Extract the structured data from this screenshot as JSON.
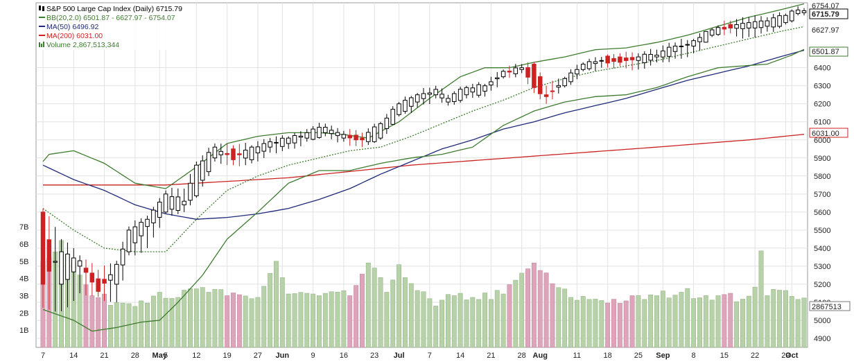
{
  "legend": {
    "title": "S&P 500 Large Cap Index (Daily) 6715.79",
    "bb": "BB(20,2.0) 6501.87 - 6627.97 - 6754.07",
    "ma50": "MA(50) 6496.92",
    "ma200": "MA(200) 6031.00",
    "volume": "Volume 2,867,513,344"
  },
  "tags": {
    "price_label": "6715.79",
    "bb_upper_label": "6754.07",
    "bb_mid_label": "6627.97",
    "bb_lower_label": "6501.87",
    "ma200_label": "6031.00",
    "volume_label": "2867513"
  },
  "chart_data": {
    "type": "candlestick",
    "title": "S&P 500 Large Cap Index (Daily) 6715.79",
    "price_axis": {
      "min": 4850,
      "max": 6760,
      "ticks": [
        4900,
        5000,
        5100,
        5200,
        5300,
        5400,
        5500,
        5600,
        5700,
        5800,
        5900,
        6000,
        6100,
        6200,
        6300,
        6400
      ]
    },
    "volume_axis": {
      "max_billions": 8,
      "ticks": [
        "1B",
        "2B",
        "3B",
        "4B",
        "5B",
        "6B",
        "7B"
      ]
    },
    "x_labels": [
      {
        "i": 0,
        "label": "7"
      },
      {
        "i": 5,
        "label": "14"
      },
      {
        "i": 10,
        "label": "21"
      },
      {
        "i": 15,
        "label": "28"
      },
      {
        "i": 19,
        "label": "May"
      },
      {
        "i": 20,
        "label": "5"
      },
      {
        "i": 25,
        "label": "12"
      },
      {
        "i": 30,
        "label": "19"
      },
      {
        "i": 35,
        "label": "27"
      },
      {
        "i": 39,
        "label": "Jun"
      },
      {
        "i": 44,
        "label": "9"
      },
      {
        "i": 49,
        "label": "16"
      },
      {
        "i": 54,
        "label": "23"
      },
      {
        "i": 58,
        "label": "Jul"
      },
      {
        "i": 63,
        "label": "7"
      },
      {
        "i": 68,
        "label": "14"
      },
      {
        "i": 73,
        "label": "21"
      },
      {
        "i": 78,
        "label": "28"
      },
      {
        "i": 81,
        "label": "Aug"
      },
      {
        "i": 87,
        "label": "11"
      },
      {
        "i": 92,
        "label": "18"
      },
      {
        "i": 97,
        "label": "25"
      },
      {
        "i": 101,
        "label": "Sep"
      },
      {
        "i": 106,
        "label": "8"
      },
      {
        "i": 111,
        "label": "15"
      },
      {
        "i": 116,
        "label": "22"
      },
      {
        "i": 121,
        "label": "29"
      },
      {
        "i": 122,
        "label": "Oct"
      }
    ],
    "ohlc_anchors": [
      [
        0,
        5600,
        5620,
        5070,
        5200
      ],
      [
        3,
        5200,
        5450,
        5050,
        5380
      ],
      [
        6,
        5300,
        5360,
        5150,
        5330
      ],
      [
        9,
        5230,
        5280,
        5130,
        5160
      ],
      [
        12,
        5200,
        5330,
        5100,
        5310
      ],
      [
        14,
        5380,
        5520,
        5360,
        5500
      ],
      [
        17,
        5520,
        5580,
        5400,
        5560
      ],
      [
        20,
        5600,
        5720,
        5590,
        5700
      ],
      [
        23,
        5640,
        5730,
        5600,
        5660
      ],
      [
        25,
        5690,
        5880,
        5680,
        5860
      ],
      [
        28,
        5900,
        5980,
        5880,
        5960
      ],
      [
        31,
        5950,
        5970,
        5860,
        5890
      ],
      [
        34,
        5890,
        5970,
        5870,
        5960
      ],
      [
        37,
        5960,
        6010,
        5930,
        5990
      ],
      [
        40,
        5980,
        6020,
        5950,
        6010
      ],
      [
        43,
        6010,
        6060,
        5990,
        6040
      ],
      [
        46,
        6040,
        6090,
        6020,
        6070
      ],
      [
        49,
        6010,
        6050,
        5990,
        6030
      ],
      [
        52,
        6010,
        6040,
        5960,
        6000
      ],
      [
        55,
        6010,
        6100,
        6000,
        6090
      ],
      [
        58,
        6140,
        6210,
        6130,
        6200
      ],
      [
        61,
        6210,
        6260,
        6180,
        6250
      ],
      [
        64,
        6250,
        6300,
        6230,
        6280
      ],
      [
        66,
        6210,
        6250,
        6190,
        6230
      ],
      [
        69,
        6250,
        6300,
        6230,
        6290
      ],
      [
        72,
        6270,
        6310,
        6240,
        6300
      ],
      [
        75,
        6350,
        6390,
        6340,
        6380
      ],
      [
        78,
        6390,
        6420,
        6370,
        6400
      ],
      [
        80,
        6420,
        6430,
        6260,
        6290
      ],
      [
        82,
        6250,
        6300,
        6200,
        6240
      ],
      [
        85,
        6300,
        6350,
        6290,
        6340
      ],
      [
        88,
        6390,
        6430,
        6380,
        6420
      ],
      [
        91,
        6440,
        6460,
        6400,
        6440
      ],
      [
        94,
        6460,
        6480,
        6410,
        6430
      ],
      [
        97,
        6440,
        6480,
        6390,
        6460
      ],
      [
        100,
        6460,
        6500,
        6430,
        6470
      ],
      [
        103,
        6490,
        6540,
        6450,
        6520
      ],
      [
        106,
        6520,
        6560,
        6480,
        6550
      ],
      [
        109,
        6580,
        6620,
        6570,
        6610
      ],
      [
        112,
        6640,
        6660,
        6590,
        6620
      ],
      [
        115,
        6620,
        6680,
        6570,
        6650
      ],
      [
        118,
        6630,
        6680,
        6600,
        6660
      ],
      [
        121,
        6650,
        6700,
        6640,
        6690
      ],
      [
        123,
        6700,
        6740,
        6690,
        6720
      ],
      [
        124,
        6705,
        6730,
        6690,
        6715.79
      ]
    ],
    "bb_upper_anchors": [
      [
        0,
        5880
      ],
      [
        1,
        5920
      ],
      [
        5,
        5940
      ],
      [
        10,
        5870
      ],
      [
        15,
        5760
      ],
      [
        20,
        5730
      ],
      [
        25,
        5850
      ],
      [
        30,
        5980
      ],
      [
        35,
        6020
      ],
      [
        40,
        6040
      ],
      [
        45,
        6040
      ],
      [
        49,
        6030
      ],
      [
        53,
        6010
      ],
      [
        58,
        6100
      ],
      [
        63,
        6230
      ],
      [
        68,
        6350
      ],
      [
        72,
        6400
      ],
      [
        76,
        6400
      ],
      [
        80,
        6430
      ],
      [
        85,
        6460
      ],
      [
        90,
        6500
      ],
      [
        95,
        6510
      ],
      [
        100,
        6540
      ],
      [
        105,
        6580
      ],
      [
        110,
        6630
      ],
      [
        115,
        6680
      ],
      [
        120,
        6720
      ],
      [
        124,
        6754.07
      ]
    ],
    "bb_mid_anchors": [
      [
        0,
        5620
      ],
      [
        5,
        5500
      ],
      [
        10,
        5400
      ],
      [
        15,
        5380
      ],
      [
        20,
        5380
      ],
      [
        25,
        5560
      ],
      [
        30,
        5720
      ],
      [
        35,
        5800
      ],
      [
        40,
        5860
      ],
      [
        45,
        5900
      ],
      [
        50,
        5940
      ],
      [
        55,
        5960
      ],
      [
        60,
        6020
      ],
      [
        65,
        6090
      ],
      [
        70,
        6160
      ],
      [
        75,
        6220
      ],
      [
        80,
        6290
      ],
      [
        85,
        6340
      ],
      [
        90,
        6380
      ],
      [
        95,
        6410
      ],
      [
        100,
        6440
      ],
      [
        105,
        6480
      ],
      [
        110,
        6520
      ],
      [
        115,
        6560
      ],
      [
        120,
        6600
      ],
      [
        124,
        6627.97
      ]
    ],
    "bb_lower_anchors": [
      [
        0,
        5060
      ],
      [
        5,
        5000
      ],
      [
        8,
        4940
      ],
      [
        12,
        4960
      ],
      [
        16,
        4990
      ],
      [
        19,
        5000
      ],
      [
        22,
        5100
      ],
      [
        26,
        5250
      ],
      [
        30,
        5450
      ],
      [
        35,
        5600
      ],
      [
        40,
        5760
      ],
      [
        45,
        5830
      ],
      [
        50,
        5830
      ],
      [
        55,
        5870
      ],
      [
        60,
        5900
      ],
      [
        65,
        5920
      ],
      [
        70,
        5960
      ],
      [
        75,
        6080
      ],
      [
        80,
        6160
      ],
      [
        85,
        6210
      ],
      [
        90,
        6240
      ],
      [
        95,
        6250
      ],
      [
        100,
        6290
      ],
      [
        105,
        6350
      ],
      [
        110,
        6400
      ],
      [
        114,
        6410
      ],
      [
        118,
        6420
      ],
      [
        122,
        6470
      ],
      [
        124,
        6501.87
      ]
    ],
    "ma50_anchors": [
      [
        0,
        5860
      ],
      [
        5,
        5780
      ],
      [
        10,
        5720
      ],
      [
        15,
        5640
      ],
      [
        20,
        5590
      ],
      [
        25,
        5560
      ],
      [
        30,
        5570
      ],
      [
        35,
        5590
      ],
      [
        40,
        5620
      ],
      [
        45,
        5670
      ],
      [
        50,
        5730
      ],
      [
        55,
        5810
      ],
      [
        60,
        5880
      ],
      [
        65,
        5950
      ],
      [
        70,
        6000
      ],
      [
        75,
        6060
      ],
      [
        80,
        6100
      ],
      [
        85,
        6150
      ],
      [
        90,
        6190
      ],
      [
        95,
        6230
      ],
      [
        100,
        6280
      ],
      [
        105,
        6330
      ],
      [
        110,
        6370
      ],
      [
        115,
        6410
      ],
      [
        120,
        6460
      ],
      [
        124,
        6496.92
      ]
    ],
    "ma200_anchors": [
      [
        0,
        5750
      ],
      [
        20,
        5750
      ],
      [
        40,
        5790
      ],
      [
        60,
        5860
      ],
      [
        80,
        5910
      ],
      [
        100,
        5960
      ],
      [
        115,
        6000
      ],
      [
        124,
        6031.0
      ]
    ],
    "volume_anchors_billions": [
      [
        0,
        5.0
      ],
      [
        3,
        6.2
      ],
      [
        6,
        4.2
      ],
      [
        8,
        3.0
      ],
      [
        12,
        2.6
      ],
      [
        16,
        2.7
      ],
      [
        19,
        3.2
      ],
      [
        22,
        2.9
      ],
      [
        25,
        3.4
      ],
      [
        30,
        3.0
      ],
      [
        35,
        2.9
      ],
      [
        38,
        5.0
      ],
      [
        40,
        3.1
      ],
      [
        45,
        3.0
      ],
      [
        50,
        3.0
      ],
      [
        53,
        4.9
      ],
      [
        56,
        3.2
      ],
      [
        58,
        4.8
      ],
      [
        61,
        3.3
      ],
      [
        64,
        2.4
      ],
      [
        67,
        3.0
      ],
      [
        70,
        2.9
      ],
      [
        75,
        3.1
      ],
      [
        80,
        4.9
      ],
      [
        83,
        3.7
      ],
      [
        86,
        2.9
      ],
      [
        90,
        2.8
      ],
      [
        95,
        2.7
      ],
      [
        100,
        3.0
      ],
      [
        104,
        3.2
      ],
      [
        110,
        3.0
      ],
      [
        114,
        2.8
      ],
      [
        116,
        3.5
      ],
      [
        117,
        5.6
      ],
      [
        118,
        3.0
      ],
      [
        121,
        3.3
      ],
      [
        124,
        2.87
      ]
    ]
  }
}
